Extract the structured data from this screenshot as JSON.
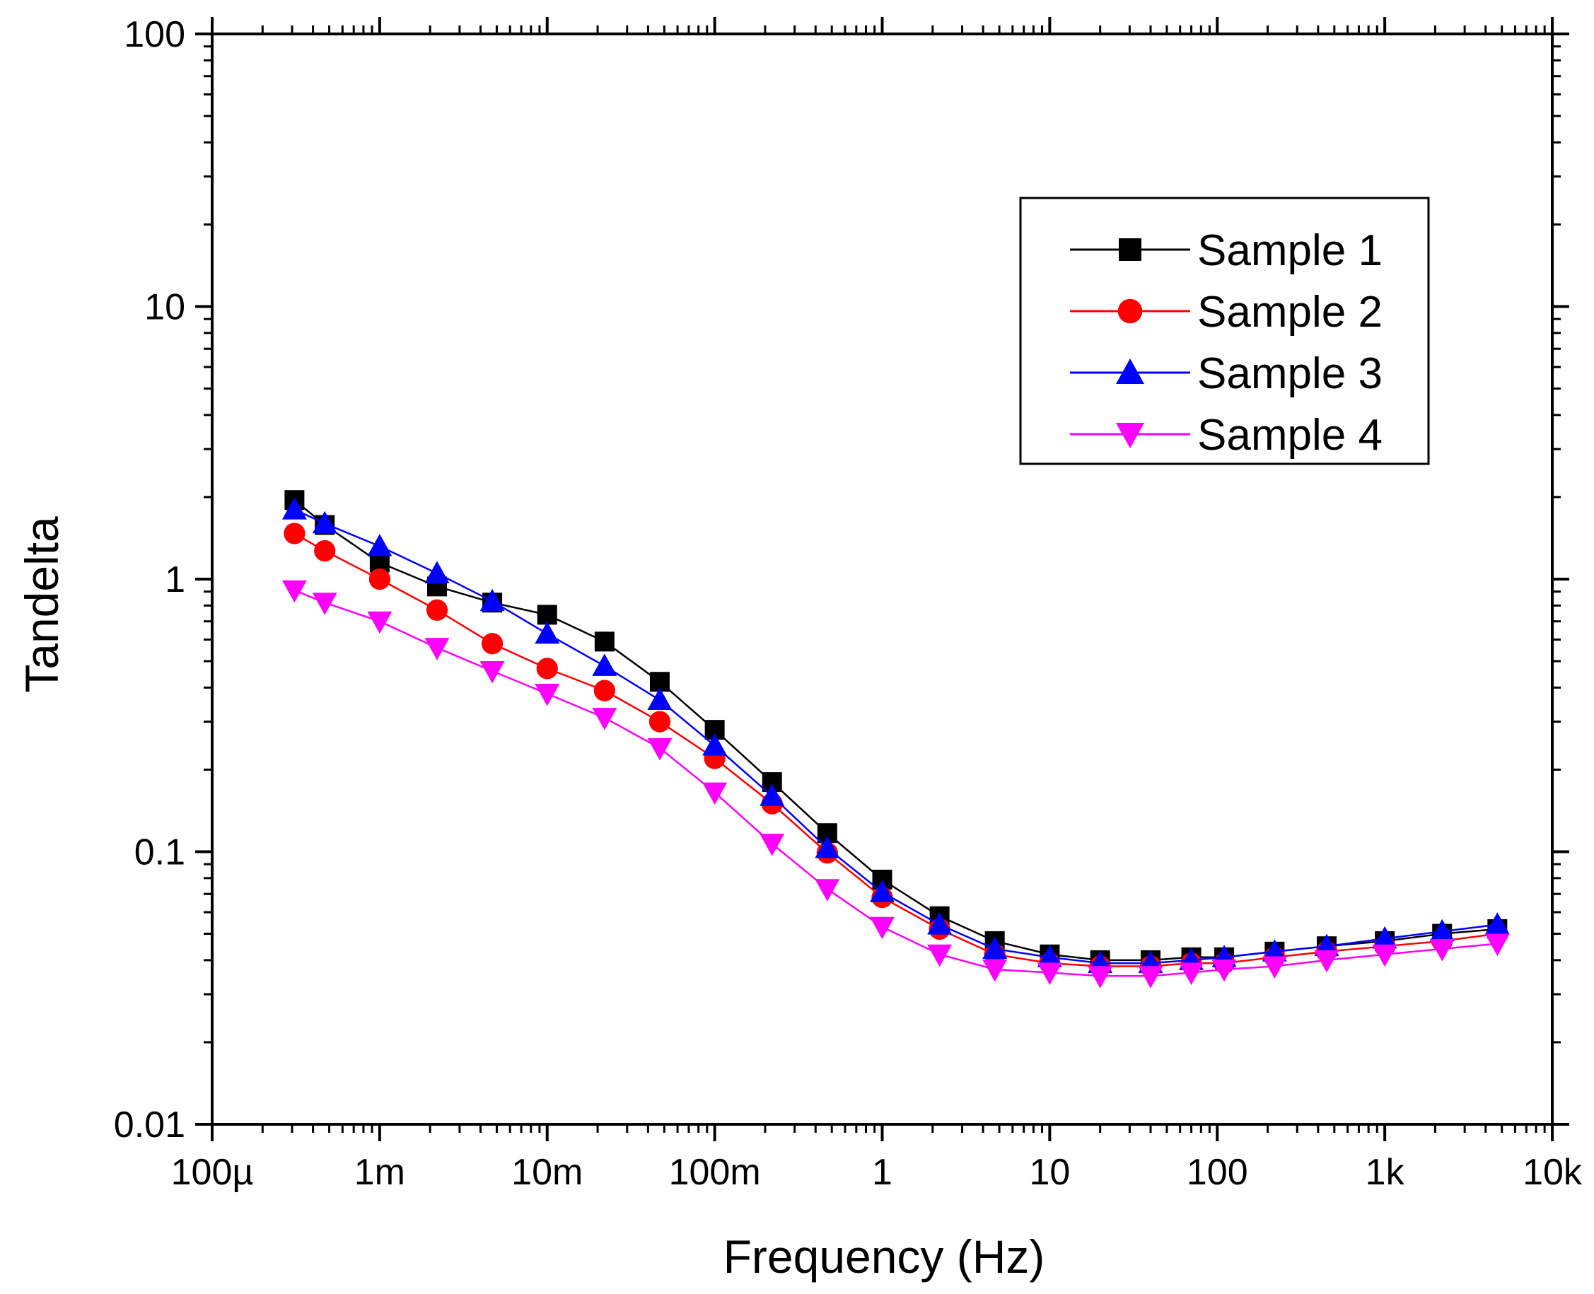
{
  "chart_data": {
    "type": "line",
    "xlabel": "Frequency (Hz)",
    "ylabel": "Tandelta",
    "x_scale": "log",
    "y_scale": "log",
    "xlim": [
      0.0001,
      10000
    ],
    "ylim": [
      0.01,
      100
    ],
    "grid": false,
    "legend_position": "top-right",
    "x_ticks": [
      {
        "value": 0.0001,
        "label": "100µ"
      },
      {
        "value": 0.001,
        "label": "1m"
      },
      {
        "value": 0.01,
        "label": "10m"
      },
      {
        "value": 0.1,
        "label": "100m"
      },
      {
        "value": 1,
        "label": "1"
      },
      {
        "value": 10,
        "label": "10"
      },
      {
        "value": 100,
        "label": "100"
      },
      {
        "value": 1000,
        "label": "1k"
      },
      {
        "value": 10000,
        "label": "10k"
      }
    ],
    "y_ticks": [
      {
        "value": 0.01,
        "label": "0.01"
      },
      {
        "value": 0.1,
        "label": "0.1"
      },
      {
        "value": 1,
        "label": "1"
      },
      {
        "value": 10,
        "label": "10"
      },
      {
        "value": 100,
        "label": "100"
      }
    ],
    "x": [
      0.00031,
      0.00047,
      0.001,
      0.0022,
      0.0047,
      0.01,
      0.022,
      0.047,
      0.1,
      0.22,
      0.47,
      1,
      2.2,
      4.7,
      10,
      20,
      40,
      70,
      110,
      220,
      450,
      1000,
      2200,
      4700
    ],
    "series": [
      {
        "name": "Sample 1",
        "color": "#000000",
        "marker": "square",
        "values": [
          1.95,
          1.58,
          1.15,
          0.94,
          0.82,
          0.74,
          0.59,
          0.42,
          0.28,
          0.18,
          0.117,
          0.079,
          0.058,
          0.047,
          0.042,
          0.04,
          0.04,
          0.041,
          0.041,
          0.043,
          0.045,
          0.047,
          0.05,
          0.052
        ]
      },
      {
        "name": "Sample 2",
        "color": "#ff0000",
        "marker": "circle",
        "values": [
          1.47,
          1.27,
          1.0,
          0.77,
          0.58,
          0.47,
          0.39,
          0.3,
          0.22,
          0.15,
          0.099,
          0.068,
          0.052,
          0.042,
          0.039,
          0.038,
          0.038,
          0.039,
          0.039,
          0.041,
          0.043,
          0.045,
          0.047,
          0.05
        ]
      },
      {
        "name": "Sample 3",
        "color": "#0000ff",
        "marker": "triangle-up",
        "values": [
          1.8,
          1.6,
          1.32,
          1.05,
          0.83,
          0.63,
          0.48,
          0.36,
          0.245,
          0.16,
          0.103,
          0.071,
          0.054,
          0.044,
          0.041,
          0.039,
          0.039,
          0.04,
          0.041,
          0.043,
          0.045,
          0.048,
          0.051,
          0.054
        ]
      },
      {
        "name": "Sample 4",
        "color": "#ff00ff",
        "marker": "triangle-down",
        "values": [
          0.91,
          0.82,
          0.7,
          0.56,
          0.46,
          0.38,
          0.31,
          0.24,
          0.165,
          0.107,
          0.073,
          0.053,
          0.042,
          0.037,
          0.036,
          0.035,
          0.035,
          0.036,
          0.037,
          0.038,
          0.04,
          0.042,
          0.044,
          0.046
        ]
      }
    ]
  }
}
